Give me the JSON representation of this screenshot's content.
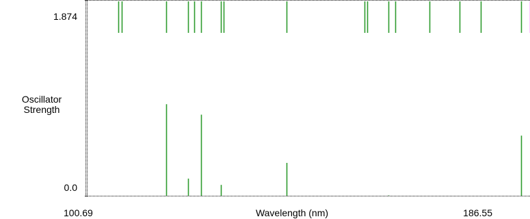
{
  "chart_data": {
    "type": "bar",
    "ylabel": "Oscillator\nStrength",
    "xlabel": "Wavelength (nm)",
    "xlim": [
      100.69,
      186.55
    ],
    "ylim": [
      0.0,
      1.874
    ],
    "xmin_label": "100.69",
    "xmax_label": "186.55",
    "ymin_label": "0.0",
    "ymax_label": "1.874",
    "grid": false,
    "colors": {
      "stick": "#2e9b2e",
      "highlight": "#ff44ff",
      "axis": "#000000"
    },
    "transitions": [
      {
        "x": 107.17
      },
      {
        "x": 107.84
      },
      {
        "x": 116.37,
        "y": 0.88
      },
      {
        "x": 120.6,
        "y": 0.17
      },
      {
        "x": 121.8
      },
      {
        "x": 123.1,
        "y": 0.78
      },
      {
        "x": 127.0,
        "y": 0.11
      },
      {
        "x": 127.5
      },
      {
        "x": 139.6,
        "y": 0.32
      },
      {
        "x": 154.6
      },
      {
        "x": 155.2
      },
      {
        "x": 159.2,
        "y": 0.01
      },
      {
        "x": 160.6
      },
      {
        "x": 167.1
      },
      {
        "x": 172.9
      },
      {
        "x": 177.0
      },
      {
        "x": 184.8,
        "y": 0.58
      },
      {
        "x": 186.55,
        "highlight": true
      }
    ]
  }
}
